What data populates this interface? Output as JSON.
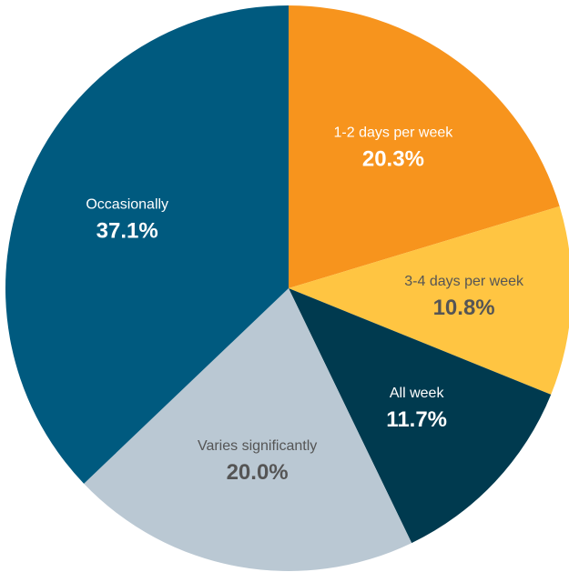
{
  "chart_data": {
    "type": "pie",
    "categories": [
      "1-2 days per week",
      "3-4 days per week",
      "All week",
      "Varies significantly",
      "Occasionally"
    ],
    "values": [
      20.3,
      10.8,
      11.7,
      20.0,
      37.1
    ],
    "value_labels": [
      "20.3%",
      "10.8%",
      "11.7%",
      "20.0%",
      "37.1%"
    ],
    "colors": [
      "#f7941d",
      "#ffc542",
      "#003a4f",
      "#bac8d3",
      "#005a7f"
    ],
    "label_colors": [
      "#ffffff",
      "#555555",
      "#ffffff",
      "#555555",
      "#ffffff"
    ]
  }
}
